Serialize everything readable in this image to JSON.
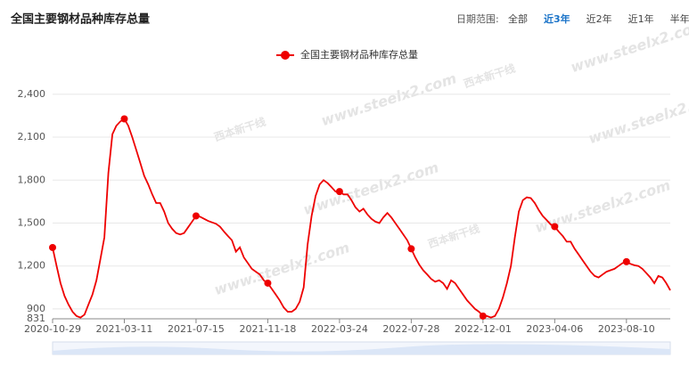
{
  "header": {
    "title": "全国主要钢材品种库存总量",
    "date_range": {
      "label": "日期范围:",
      "options": [
        "全部",
        "近3年",
        "近2年",
        "近1年",
        "半年"
      ],
      "active": 1
    }
  },
  "watermark": {
    "url": "www.steelx2.com",
    "brand": "西本新干线"
  },
  "chart_data": {
    "type": "line",
    "categories": [
      "2020-10-29",
      null,
      null,
      null,
      null,
      null,
      null,
      null,
      null,
      null,
      null,
      null,
      null,
      null,
      null,
      null,
      null,
      null,
      "2021-03-11",
      null,
      null,
      null,
      null,
      null,
      null,
      null,
      null,
      null,
      null,
      null,
      null,
      null,
      null,
      null,
      null,
      null,
      "2021-07-15",
      null,
      null,
      null,
      null,
      null,
      null,
      null,
      null,
      null,
      null,
      null,
      null,
      null,
      null,
      null,
      null,
      null,
      "2021-11-18",
      null,
      null,
      null,
      null,
      null,
      null,
      null,
      null,
      null,
      null,
      null,
      null,
      null,
      null,
      null,
      null,
      null,
      "2022-03-24",
      null,
      null,
      null,
      null,
      null,
      null,
      null,
      null,
      null,
      null,
      null,
      null,
      null,
      null,
      null,
      null,
      null,
      "2022-07-28",
      null,
      null,
      null,
      null,
      null,
      null,
      null,
      null,
      null,
      null,
      null,
      null,
      null,
      null,
      null,
      null,
      null,
      "2022-12-01",
      null,
      null,
      null,
      null,
      null,
      null,
      null,
      null,
      null,
      null,
      null,
      null,
      null,
      null,
      null,
      null,
      null,
      "2023-04-06",
      null,
      null,
      null,
      null,
      null,
      null,
      null,
      null,
      null,
      null,
      null,
      null,
      null,
      null,
      null,
      null,
      null,
      "2023-08-10",
      null,
      null,
      null,
      null,
      null,
      null,
      null,
      null,
      null,
      null,
      null
    ],
    "series": [
      {
        "name": "全国主要钢材品种库存总量",
        "color": "#ee0000",
        "values": [
          1329,
          1200,
          1080,
          990,
          930,
          880,
          850,
          840,
          860,
          930,
          1000,
          1100,
          1250,
          1400,
          1850,
          2120,
          2180,
          2210,
          2228,
          2180,
          2100,
          2010,
          1920,
          1830,
          1770,
          1700,
          1640,
          1640,
          1580,
          1500,
          1460,
          1430,
          1420,
          1430,
          1470,
          1510,
          1550,
          1545,
          1530,
          1515,
          1505,
          1495,
          1475,
          1440,
          1410,
          1380,
          1300,
          1330,
          1260,
          1220,
          1180,
          1160,
          1140,
          1100,
          1080,
          1040,
          1000,
          960,
          910,
          880,
          880,
          900,
          950,
          1050,
          1350,
          1550,
          1690,
          1770,
          1800,
          1780,
          1750,
          1720,
          1720,
          1700,
          1700,
          1660,
          1610,
          1580,
          1600,
          1560,
          1530,
          1510,
          1500,
          1540,
          1570,
          1540,
          1500,
          1460,
          1420,
          1380,
          1320,
          1260,
          1210,
          1170,
          1140,
          1110,
          1090,
          1100,
          1080,
          1040,
          1100,
          1080,
          1040,
          1000,
          960,
          930,
          900,
          880,
          850,
          850,
          840,
          850,
          900,
          980,
          1080,
          1200,
          1400,
          1580,
          1660,
          1680,
          1675,
          1640,
          1590,
          1550,
          1520,
          1490,
          1475,
          1440,
          1410,
          1370,
          1370,
          1320,
          1280,
          1240,
          1200,
          1160,
          1130,
          1120,
          1140,
          1160,
          1170,
          1180,
          1200,
          1220,
          1230,
          1215,
          1205,
          1200,
          1180,
          1150,
          1120,
          1080,
          1130,
          1120,
          1080,
          1030
        ]
      }
    ],
    "ylim": [
      831,
      2470
    ],
    "yticks": [
      831,
      900,
      {
        "value": 1200,
        "label": "1,200"
      },
      {
        "value": 1500,
        "label": "1,500"
      },
      {
        "value": 1800,
        "label": "1,800"
      },
      {
        "value": 2100,
        "label": "2,100"
      },
      {
        "value": 2400,
        "label": "2,400"
      }
    ],
    "grid": true
  }
}
